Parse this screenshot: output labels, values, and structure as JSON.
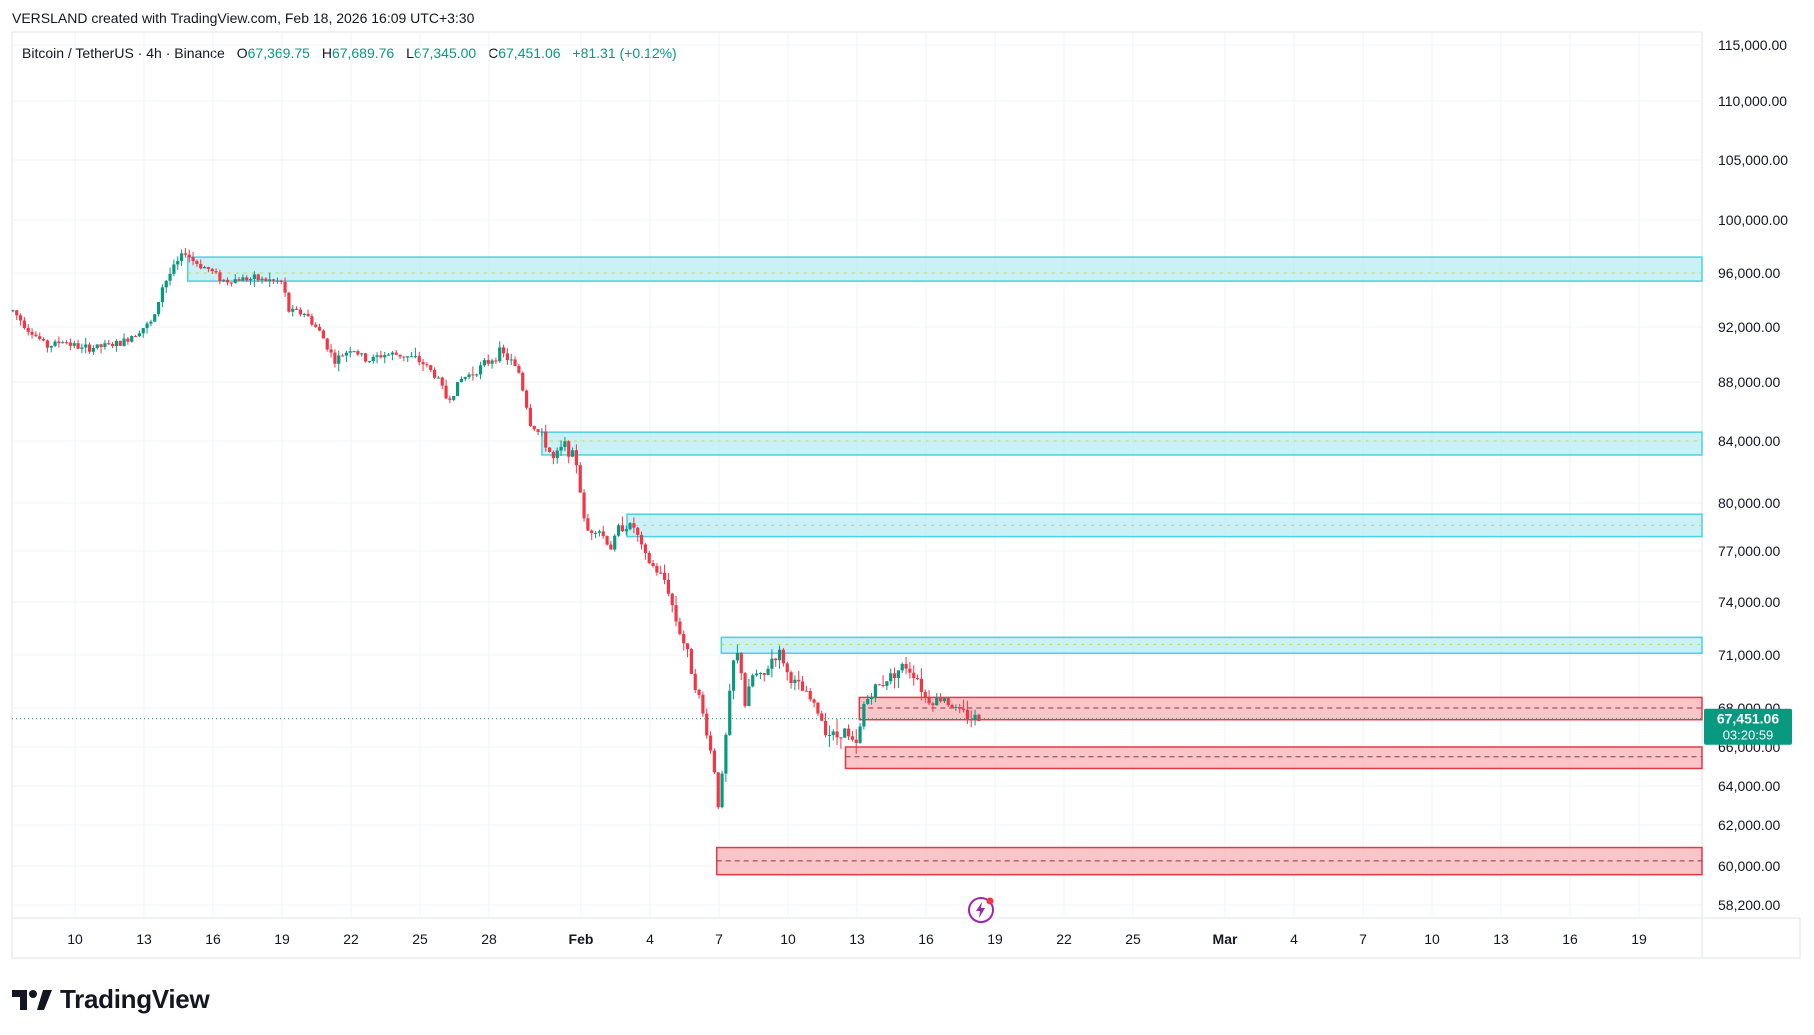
{
  "header": {
    "credit": "VERSLAND created with TradingView.com, Feb 18, 2026 16:09 UTC+3:30"
  },
  "legend": {
    "symbol": "Bitcoin / TetherUS · 4h · Binance",
    "o_label": "O",
    "o_value": "67,369.75",
    "h_label": "H",
    "h_value": "67,689.76",
    "l_label": "L",
    "l_value": "67,345.00",
    "c_label": "C",
    "c_value": "67,451.06",
    "change": "+81.31 (+0.12%)"
  },
  "branding": {
    "name": "TradingView",
    "logo_icon": "tradingview-logo-icon"
  },
  "price_label": {
    "price": "67,451.06",
    "countdown": "03:20:59"
  },
  "colors": {
    "up": "#089981",
    "down": "#f23645",
    "resistance_fill": "#b2ebf2",
    "resistance_stroke": "#4dd0e1",
    "support_fill": "#f8bbc0",
    "support_stroke": "#e53945",
    "price_tag": "#089981"
  },
  "chart_data": {
    "type": "candlestick",
    "symbol": "BTCUSDT",
    "timeframe": "4h",
    "exchange": "Binance",
    "y_axis": {
      "ticks": [
        {
          "value": 115000,
          "label": "115,000.00"
        },
        {
          "value": 110000,
          "label": "110,000.00"
        },
        {
          "value": 105000,
          "label": "105,000.00"
        },
        {
          "value": 100000,
          "label": "100,000.00"
        },
        {
          "value": 96000,
          "label": "96,000.00"
        },
        {
          "value": 92000,
          "label": "92,000.00"
        },
        {
          "value": 88000,
          "label": "88,000.00"
        },
        {
          "value": 84000,
          "label": "84,000.00"
        },
        {
          "value": 80000,
          "label": "80,000.00"
        },
        {
          "value": 77000,
          "label": "77,000.00"
        },
        {
          "value": 74000,
          "label": "74,000.00"
        },
        {
          "value": 71000,
          "label": "71,000.00"
        },
        {
          "value": 68000,
          "label": "68,000.00"
        },
        {
          "value": 66000,
          "label": "66,000.00"
        },
        {
          "value": 64000,
          "label": "64,000.00"
        },
        {
          "value": 62000,
          "label": "62,000.00"
        },
        {
          "value": 60000,
          "label": "60,000.00"
        },
        {
          "value": 58200,
          "label": "58,200.00"
        }
      ]
    },
    "x_axis": {
      "ticks": [
        {
          "day": 10,
          "label": "10"
        },
        {
          "day": 13,
          "label": "13"
        },
        {
          "day": 16,
          "label": "16"
        },
        {
          "day": 19,
          "label": "19"
        },
        {
          "day": 22,
          "label": "22"
        },
        {
          "day": 25,
          "label": "25"
        },
        {
          "day": 28,
          "label": "28"
        },
        {
          "day": 32,
          "label": "Feb"
        },
        {
          "day": 35,
          "label": "4"
        },
        {
          "day": 38,
          "label": "7"
        },
        {
          "day": 41,
          "label": "10"
        },
        {
          "day": 44,
          "label": "13"
        },
        {
          "day": 47,
          "label": "16"
        },
        {
          "day": 50,
          "label": "19"
        },
        {
          "day": 53,
          "label": "22"
        },
        {
          "day": 56,
          "label": "25"
        },
        {
          "day": 60,
          "label": "Mar"
        },
        {
          "day": 63,
          "label": "4"
        },
        {
          "day": 66,
          "label": "7"
        },
        {
          "day": 69,
          "label": "10"
        },
        {
          "day": 72,
          "label": "13"
        },
        {
          "day": 75,
          "label": "16"
        },
        {
          "day": 78,
          "label": "19"
        },
        {
          "day": 81,
          "label": "22"
        }
      ]
    },
    "price_path": [
      [
        7.3,
        93200
      ],
      [
        8.0,
        91800
      ],
      [
        8.8,
        90600
      ],
      [
        9.5,
        91000
      ],
      [
        10.3,
        90400
      ],
      [
        11.2,
        90600
      ],
      [
        12.0,
        90800
      ],
      [
        12.8,
        91800
      ],
      [
        13.4,
        92400
      ],
      [
        13.8,
        95000
      ],
      [
        14.3,
        96400
      ],
      [
        14.8,
        97600
      ],
      [
        15.2,
        96800
      ],
      [
        15.8,
        96300
      ],
      [
        16.5,
        95400
      ],
      [
        17.3,
        95600
      ],
      [
        18.2,
        95500
      ],
      [
        19.0,
        95300
      ],
      [
        19.3,
        93200
      ],
      [
        20.0,
        93000
      ],
      [
        20.7,
        91500
      ],
      [
        21.3,
        89500
      ],
      [
        22.0,
        90500
      ],
      [
        22.7,
        89500
      ],
      [
        23.4,
        90000
      ],
      [
        24.0,
        90000
      ],
      [
        24.6,
        89800
      ],
      [
        25.2,
        89300
      ],
      [
        25.8,
        88200
      ],
      [
        26.2,
        86700
      ],
      [
        26.8,
        88200
      ],
      [
        27.4,
        88800
      ],
      [
        28.0,
        89500
      ],
      [
        28.5,
        90200
      ],
      [
        29.0,
        89400
      ],
      [
        29.3,
        88700
      ],
      [
        29.8,
        85200
      ],
      [
        30.3,
        84300
      ],
      [
        30.8,
        82800
      ],
      [
        31.3,
        83800
      ],
      [
        31.8,
        82600
      ],
      [
        32.2,
        78200
      ],
      [
        32.7,
        78500
      ],
      [
        33.3,
        77200
      ],
      [
        33.7,
        78600
      ],
      [
        34.3,
        78500
      ],
      [
        34.8,
        76600
      ],
      [
        35.3,
        75800
      ],
      [
        35.7,
        75200
      ],
      [
        36.1,
        73100
      ],
      [
        36.6,
        71200
      ],
      [
        37.2,
        68200
      ],
      [
        37.5,
        66600
      ],
      [
        37.8,
        64800
      ],
      [
        38.0,
        62800
      ],
      [
        38.3,
        66500
      ],
      [
        38.6,
        70500
      ],
      [
        38.9,
        71200
      ],
      [
        39.1,
        68000
      ],
      [
        39.5,
        70000
      ],
      [
        39.9,
        69600
      ],
      [
        40.3,
        70800
      ],
      [
        40.7,
        71100
      ],
      [
        41.0,
        69800
      ],
      [
        41.4,
        69300
      ],
      [
        41.9,
        68600
      ],
      [
        42.3,
        67800
      ],
      [
        42.7,
        66800
      ],
      [
        43.1,
        66500
      ],
      [
        43.4,
        67000
      ],
      [
        43.7,
        66300
      ],
      [
        44.0,
        66000
      ],
      [
        44.3,
        68200
      ],
      [
        44.7,
        69000
      ],
      [
        45.1,
        69400
      ],
      [
        45.6,
        70000
      ],
      [
        46.1,
        70400
      ],
      [
        46.6,
        69800
      ],
      [
        47.0,
        68500
      ],
      [
        47.4,
        68400
      ],
      [
        47.8,
        68600
      ],
      [
        48.2,
        68000
      ],
      [
        48.6,
        67700
      ],
      [
        49.0,
        67500
      ],
      [
        49.3,
        67450
      ]
    ],
    "zones": [
      {
        "kind": "resistance",
        "from_day": 14.9,
        "top": 97200,
        "bottom": 95400,
        "mid": 96000
      },
      {
        "kind": "resistance",
        "from_day": 30.3,
        "top": 84600,
        "bottom": 83100,
        "mid": 84000
      },
      {
        "kind": "resistance",
        "from_day": 34.0,
        "top": 79300,
        "bottom": 77900,
        "mid": 78600
      },
      {
        "kind": "resistance",
        "from_day": 38.1,
        "top": 72000,
        "bottom": 71100,
        "mid": 71600
      },
      {
        "kind": "support",
        "from_day": 44.1,
        "top": 68600,
        "bottom": 67400,
        "mid": 68000
      },
      {
        "kind": "support",
        "from_day": 43.5,
        "top": 66000,
        "bottom": 64900,
        "mid": 65500
      },
      {
        "kind": "support",
        "from_day": 37.9,
        "top": 60900,
        "bottom": 59600,
        "mid": 60250
      }
    ],
    "last_price": 67451.06,
    "grid": true,
    "legend": "top-left"
  }
}
